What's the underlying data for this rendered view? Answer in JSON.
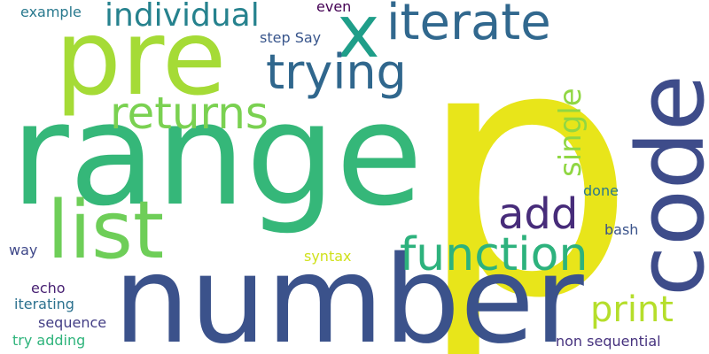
{
  "words": [
    {
      "text": "p",
      "color": "#e8e51a"
    },
    {
      "text": "range",
      "color": "#35b779"
    },
    {
      "text": "number",
      "color": "#3b528b"
    },
    {
      "text": "pre",
      "color": "#a5db36"
    },
    {
      "text": "code",
      "color": "#3e4c8a"
    },
    {
      "text": "iterate",
      "color": "#31688e"
    },
    {
      "text": "x",
      "color": "#1f9e89"
    },
    {
      "text": "list",
      "color": "#6ece58"
    },
    {
      "text": "trying",
      "color": "#30678d"
    },
    {
      "text": "individual",
      "color": "#26828e"
    },
    {
      "text": "returns",
      "color": "#7ad151"
    },
    {
      "text": "function",
      "color": "#2db27d"
    },
    {
      "text": "add",
      "color": "#472c7a"
    },
    {
      "text": "single",
      "color": "#90d743"
    },
    {
      "text": "print",
      "color": "#b5de2b"
    },
    {
      "text": "example",
      "color": "#29798e"
    },
    {
      "text": "even",
      "color": "#440154"
    },
    {
      "text": "step Say",
      "color": "#39568c"
    },
    {
      "text": "done",
      "color": "#2a788e"
    },
    {
      "text": "bash",
      "color": "#3a538b"
    },
    {
      "text": "way",
      "color": "#3f4889"
    },
    {
      "text": "syntax",
      "color": "#d0e11c"
    },
    {
      "text": "echo",
      "color": "#482173"
    },
    {
      "text": "iterating",
      "color": "#2c718e"
    },
    {
      "text": "sequence",
      "color": "#433e85"
    },
    {
      "text": "try adding",
      "color": "#2fb47c"
    },
    {
      "text": "non sequential",
      "color": "#46327e"
    }
  ]
}
